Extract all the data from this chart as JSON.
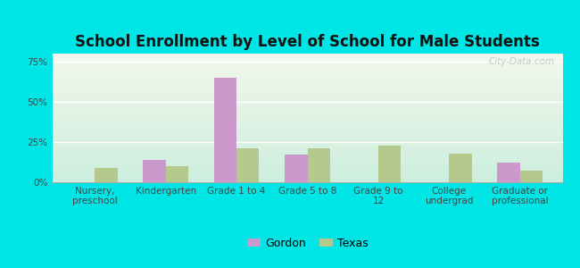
{
  "title": "School Enrollment by Level of School for Male Students",
  "categories": [
    "Nursery,\npreschool",
    "Kindergarten",
    "Grade 1 to 4",
    "Grade 5 to 8",
    "Grade 9 to\n12",
    "College\nundergrad",
    "Graduate or\nprofessional"
  ],
  "gordon_values": [
    0,
    14,
    65,
    17,
    0,
    0,
    12
  ],
  "texas_values": [
    9,
    10,
    21,
    21,
    23,
    18,
    7
  ],
  "gordon_color": "#cc99cc",
  "texas_color": "#b5c98e",
  "background_outer": "#00e5e5",
  "background_inner_top": "#f2f7ec",
  "background_inner_bottom": "#cceedd",
  "ylim": [
    0,
    80
  ],
  "yticks": [
    0,
    25,
    50,
    75
  ],
  "ytick_labels": [
    "0%",
    "25%",
    "50%",
    "75%"
  ],
  "legend_labels": [
    "Gordon",
    "Texas"
  ],
  "title_fontsize": 12,
  "tick_fontsize": 7.5,
  "bar_width": 0.32
}
